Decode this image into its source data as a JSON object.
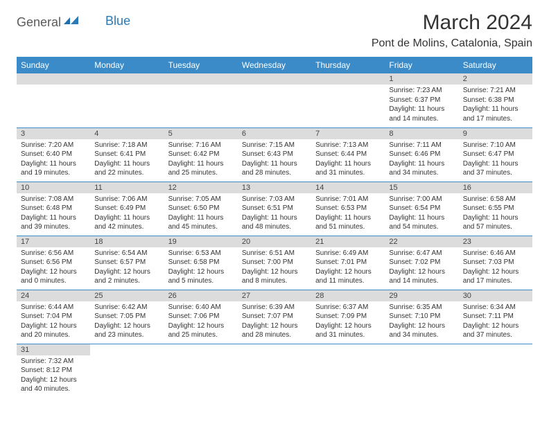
{
  "brand": {
    "part1": "General",
    "part2": "Blue"
  },
  "title": "March 2024",
  "location": "Pont de Molins, Catalonia, Spain",
  "colors": {
    "header_bg": "#3b8bc8",
    "header_text": "#ffffff",
    "daynum_bg": "#dcdcdc",
    "border": "#3b8bc8",
    "brand_gray": "#5a5a5a",
    "brand_blue": "#2a7ab8"
  },
  "weekdays": [
    "Sunday",
    "Monday",
    "Tuesday",
    "Wednesday",
    "Thursday",
    "Friday",
    "Saturday"
  ],
  "weeks": [
    [
      null,
      null,
      null,
      null,
      null,
      {
        "n": "1",
        "sr": "Sunrise: 7:23 AM",
        "ss": "Sunset: 6:37 PM",
        "d1": "Daylight: 11 hours",
        "d2": "and 14 minutes."
      },
      {
        "n": "2",
        "sr": "Sunrise: 7:21 AM",
        "ss": "Sunset: 6:38 PM",
        "d1": "Daylight: 11 hours",
        "d2": "and 17 minutes."
      }
    ],
    [
      {
        "n": "3",
        "sr": "Sunrise: 7:20 AM",
        "ss": "Sunset: 6:40 PM",
        "d1": "Daylight: 11 hours",
        "d2": "and 19 minutes."
      },
      {
        "n": "4",
        "sr": "Sunrise: 7:18 AM",
        "ss": "Sunset: 6:41 PM",
        "d1": "Daylight: 11 hours",
        "d2": "and 22 minutes."
      },
      {
        "n": "5",
        "sr": "Sunrise: 7:16 AM",
        "ss": "Sunset: 6:42 PM",
        "d1": "Daylight: 11 hours",
        "d2": "and 25 minutes."
      },
      {
        "n": "6",
        "sr": "Sunrise: 7:15 AM",
        "ss": "Sunset: 6:43 PM",
        "d1": "Daylight: 11 hours",
        "d2": "and 28 minutes."
      },
      {
        "n": "7",
        "sr": "Sunrise: 7:13 AM",
        "ss": "Sunset: 6:44 PM",
        "d1": "Daylight: 11 hours",
        "d2": "and 31 minutes."
      },
      {
        "n": "8",
        "sr": "Sunrise: 7:11 AM",
        "ss": "Sunset: 6:46 PM",
        "d1": "Daylight: 11 hours",
        "d2": "and 34 minutes."
      },
      {
        "n": "9",
        "sr": "Sunrise: 7:10 AM",
        "ss": "Sunset: 6:47 PM",
        "d1": "Daylight: 11 hours",
        "d2": "and 37 minutes."
      }
    ],
    [
      {
        "n": "10",
        "sr": "Sunrise: 7:08 AM",
        "ss": "Sunset: 6:48 PM",
        "d1": "Daylight: 11 hours",
        "d2": "and 39 minutes."
      },
      {
        "n": "11",
        "sr": "Sunrise: 7:06 AM",
        "ss": "Sunset: 6:49 PM",
        "d1": "Daylight: 11 hours",
        "d2": "and 42 minutes."
      },
      {
        "n": "12",
        "sr": "Sunrise: 7:05 AM",
        "ss": "Sunset: 6:50 PM",
        "d1": "Daylight: 11 hours",
        "d2": "and 45 minutes."
      },
      {
        "n": "13",
        "sr": "Sunrise: 7:03 AM",
        "ss": "Sunset: 6:51 PM",
        "d1": "Daylight: 11 hours",
        "d2": "and 48 minutes."
      },
      {
        "n": "14",
        "sr": "Sunrise: 7:01 AM",
        "ss": "Sunset: 6:53 PM",
        "d1": "Daylight: 11 hours",
        "d2": "and 51 minutes."
      },
      {
        "n": "15",
        "sr": "Sunrise: 7:00 AM",
        "ss": "Sunset: 6:54 PM",
        "d1": "Daylight: 11 hours",
        "d2": "and 54 minutes."
      },
      {
        "n": "16",
        "sr": "Sunrise: 6:58 AM",
        "ss": "Sunset: 6:55 PM",
        "d1": "Daylight: 11 hours",
        "d2": "and 57 minutes."
      }
    ],
    [
      {
        "n": "17",
        "sr": "Sunrise: 6:56 AM",
        "ss": "Sunset: 6:56 PM",
        "d1": "Daylight: 12 hours",
        "d2": "and 0 minutes."
      },
      {
        "n": "18",
        "sr": "Sunrise: 6:54 AM",
        "ss": "Sunset: 6:57 PM",
        "d1": "Daylight: 12 hours",
        "d2": "and 2 minutes."
      },
      {
        "n": "19",
        "sr": "Sunrise: 6:53 AM",
        "ss": "Sunset: 6:58 PM",
        "d1": "Daylight: 12 hours",
        "d2": "and 5 minutes."
      },
      {
        "n": "20",
        "sr": "Sunrise: 6:51 AM",
        "ss": "Sunset: 7:00 PM",
        "d1": "Daylight: 12 hours",
        "d2": "and 8 minutes."
      },
      {
        "n": "21",
        "sr": "Sunrise: 6:49 AM",
        "ss": "Sunset: 7:01 PM",
        "d1": "Daylight: 12 hours",
        "d2": "and 11 minutes."
      },
      {
        "n": "22",
        "sr": "Sunrise: 6:47 AM",
        "ss": "Sunset: 7:02 PM",
        "d1": "Daylight: 12 hours",
        "d2": "and 14 minutes."
      },
      {
        "n": "23",
        "sr": "Sunrise: 6:46 AM",
        "ss": "Sunset: 7:03 PM",
        "d1": "Daylight: 12 hours",
        "d2": "and 17 minutes."
      }
    ],
    [
      {
        "n": "24",
        "sr": "Sunrise: 6:44 AM",
        "ss": "Sunset: 7:04 PM",
        "d1": "Daylight: 12 hours",
        "d2": "and 20 minutes."
      },
      {
        "n": "25",
        "sr": "Sunrise: 6:42 AM",
        "ss": "Sunset: 7:05 PM",
        "d1": "Daylight: 12 hours",
        "d2": "and 23 minutes."
      },
      {
        "n": "26",
        "sr": "Sunrise: 6:40 AM",
        "ss": "Sunset: 7:06 PM",
        "d1": "Daylight: 12 hours",
        "d2": "and 25 minutes."
      },
      {
        "n": "27",
        "sr": "Sunrise: 6:39 AM",
        "ss": "Sunset: 7:07 PM",
        "d1": "Daylight: 12 hours",
        "d2": "and 28 minutes."
      },
      {
        "n": "28",
        "sr": "Sunrise: 6:37 AM",
        "ss": "Sunset: 7:09 PM",
        "d1": "Daylight: 12 hours",
        "d2": "and 31 minutes."
      },
      {
        "n": "29",
        "sr": "Sunrise: 6:35 AM",
        "ss": "Sunset: 7:10 PM",
        "d1": "Daylight: 12 hours",
        "d2": "and 34 minutes."
      },
      {
        "n": "30",
        "sr": "Sunrise: 6:34 AM",
        "ss": "Sunset: 7:11 PM",
        "d1": "Daylight: 12 hours",
        "d2": "and 37 minutes."
      }
    ],
    [
      {
        "n": "31",
        "sr": "Sunrise: 7:32 AM",
        "ss": "Sunset: 8:12 PM",
        "d1": "Daylight: 12 hours",
        "d2": "and 40 minutes."
      },
      null,
      null,
      null,
      null,
      null,
      null
    ]
  ]
}
